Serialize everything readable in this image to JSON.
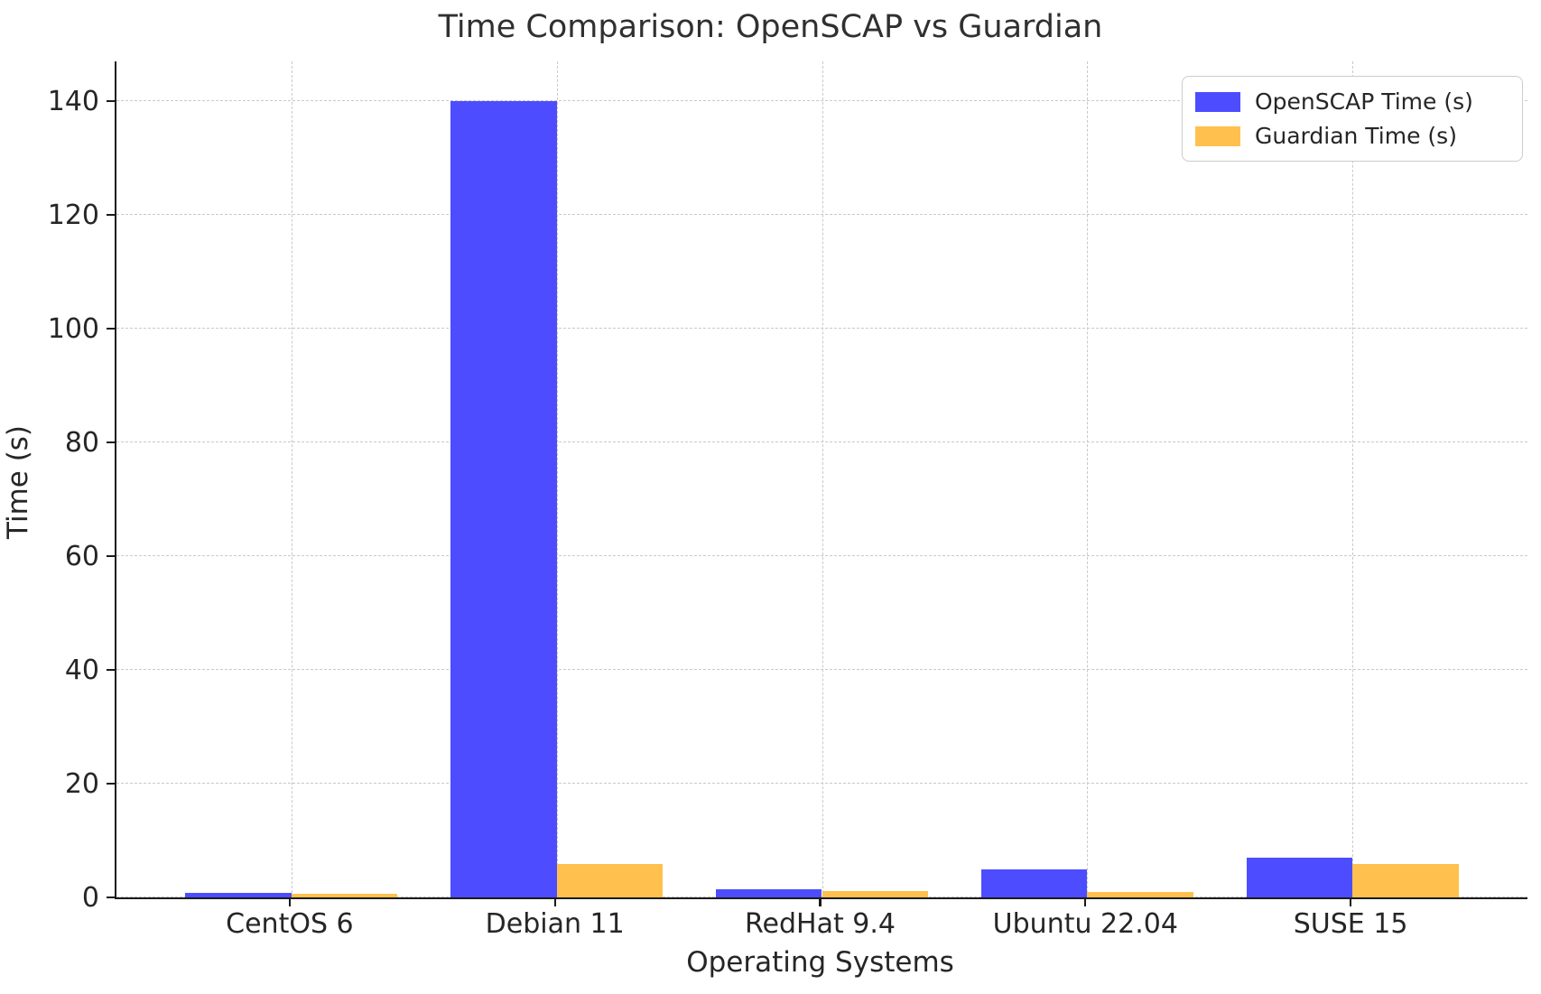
{
  "title": "Time Comparison: OpenSCAP vs Guardian",
  "colors": {
    "openscap": "#4d4dff",
    "guardian": "#ffc04d",
    "grid": "#c9c9c9",
    "axis": "#1a1a1a",
    "text": "#262626"
  },
  "chart_data": {
    "type": "bar",
    "categories": [
      "CentOS 6",
      "Debian 11",
      "RedHat 9.4",
      "Ubuntu 22.04",
      "SUSE 15"
    ],
    "series": [
      {
        "name": "OpenSCAP Time (s)",
        "color_key": "openscap",
        "values": [
          0.8,
          140.0,
          1.4,
          4.9,
          7.0
        ]
      },
      {
        "name": "Guardian Time (s)",
        "color_key": "guardian",
        "values": [
          0.6,
          5.8,
          1.1,
          1.0,
          5.9
        ]
      }
    ],
    "title": "Time Comparison: OpenSCAP vs Guardian",
    "xlabel": "Operating Systems",
    "ylabel": "Time (s)",
    "yticks": [
      0,
      20,
      40,
      60,
      80,
      100,
      120,
      140
    ],
    "ylim": [
      0,
      147
    ],
    "grid": true,
    "legend_position": "upper right"
  }
}
